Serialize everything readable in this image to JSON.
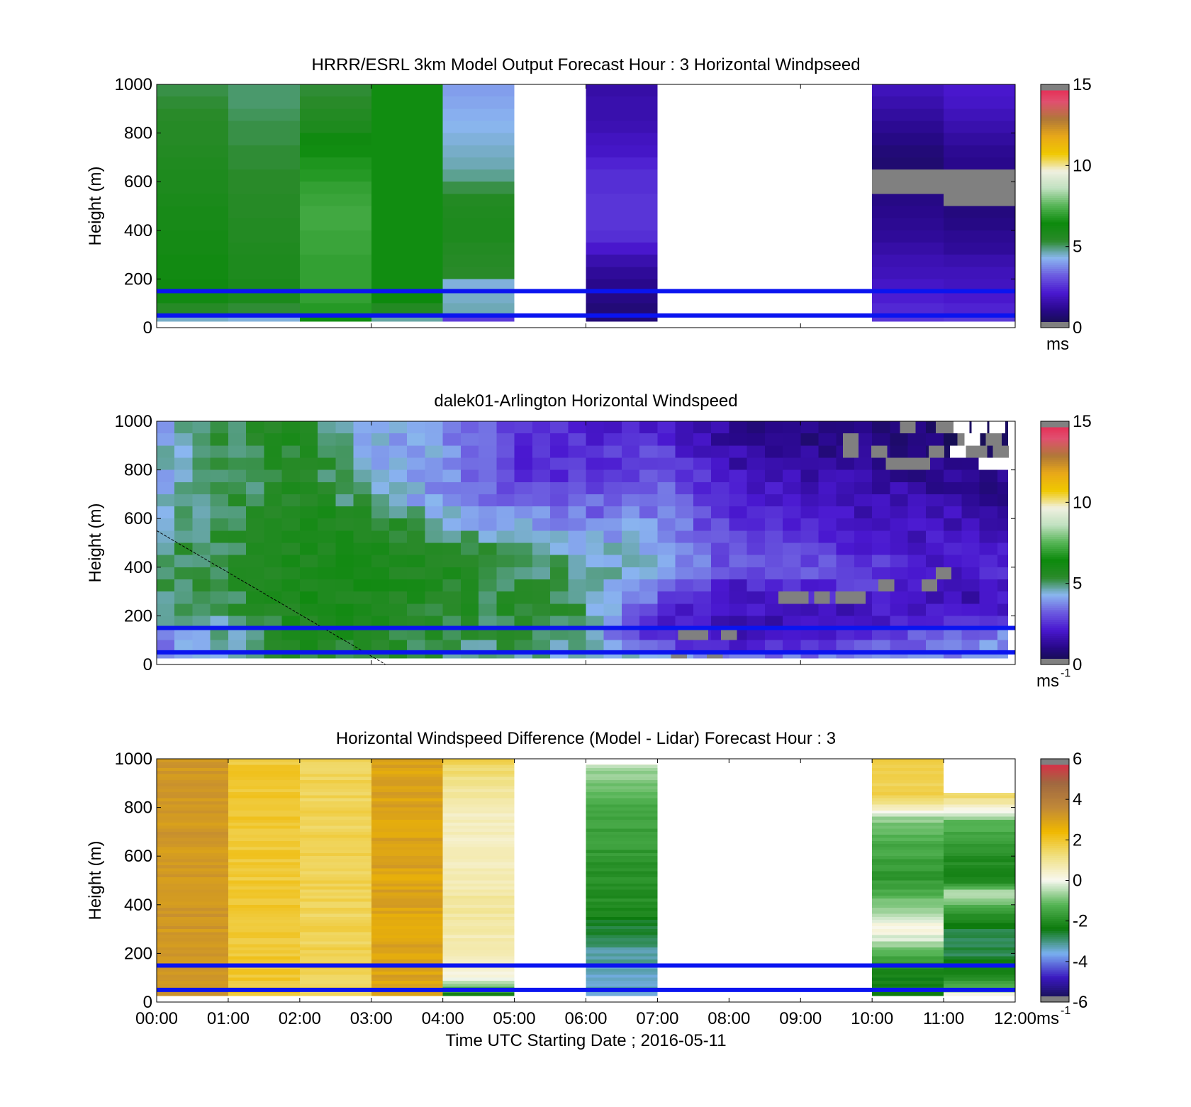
{
  "colormaps": {
    "speed": [
      "#101040",
      "#28088a",
      "#4a18d0",
      "#6c5ce0",
      "#8ab6f0",
      "#2a8a2a",
      "#0c8a0c",
      "#55b455",
      "#bfe0bf",
      "#f0f0e0",
      "#f0c800",
      "#e8a818",
      "#b07838",
      "#e05070",
      "#e8204a"
    ],
    "diff": [
      "#101040",
      "#3a18c0",
      "#7ab0f0",
      "#0c7a0c",
      "#55b455",
      "#f8f8f0",
      "#f0e080",
      "#f0b800",
      "#c08838",
      "#a06840",
      "#e8204a"
    ],
    "mask_color": "#808080"
  },
  "chart_data": [
    {
      "type": "heatmap",
      "title": "HRRR/ESRL 3km Model Output   Forecast Hour : 3 Horizontal Windpseed",
      "ylabel": "Height (m)",
      "xlabel": "",
      "show_x_tick_labels": false,
      "x_ticks": [
        "00:00",
        "01:00",
        "02:00",
        "03:00",
        "04:00",
        "05:00",
        "06:00",
        "07:00",
        "08:00",
        "09:00",
        "10:00",
        "11:00",
        "12:00"
      ],
      "xlim": [
        0,
        12
      ],
      "ylim": [
        0,
        1000
      ],
      "y_ticks": [
        0,
        200,
        400,
        600,
        800,
        1000
      ],
      "colormap": "speed",
      "clim": [
        0,
        15
      ],
      "cbar_ticks": [
        0,
        5,
        10,
        15
      ],
      "cbar_label": "ms",
      "cbar_label_sup": "",
      "reference_lines": [
        {
          "y": 150,
          "color": "#0a14f0"
        },
        {
          "y": 50,
          "color": "#0a14f0"
        }
      ],
      "height_edges": [
        25,
        50,
        100,
        150,
        200,
        250,
        300,
        350,
        400,
        450,
        500,
        550,
        600,
        650,
        700,
        750,
        800,
        850,
        900,
        950,
        1000
      ],
      "columns": [
        {
          "x0": 0,
          "x1": 1,
          "values": [
            4.5,
            5.5,
            6.2,
            6.3,
            6.2,
            6.2,
            6.1,
            6.1,
            6.0,
            6.0,
            5.9,
            5.8,
            5.8,
            5.7,
            5.6,
            5.5,
            5.5,
            5.4,
            5.3,
            5.2
          ]
        },
        {
          "x0": 1,
          "x1": 2,
          "values": [
            4.4,
            5.3,
            5.9,
            5.9,
            5.8,
            5.8,
            5.7,
            5.6,
            5.6,
            5.5,
            5.5,
            5.4,
            5.4,
            5.3,
            5.3,
            5.2,
            5.2,
            5.1,
            5.0,
            5.0
          ]
        },
        {
          "x0": 2,
          "x1": 3,
          "values": [
            6.5,
            6.8,
            7.0,
            7.0,
            7.0,
            7.0,
            7.1,
            7.1,
            7.2,
            7.2,
            7.1,
            7.0,
            6.8,
            6.7,
            6.5,
            6.3,
            5.8,
            5.6,
            5.4,
            5.3
          ]
        },
        {
          "x0": 3,
          "x1": 4,
          "values": [
            4.7,
            5.6,
            6.4,
            6.5,
            6.5,
            6.5,
            6.5,
            6.5,
            6.5,
            6.5,
            6.5,
            6.5,
            6.5,
            6.5,
            6.5,
            6.5,
            6.5,
            6.5,
            6.5,
            6.5
          ]
        },
        {
          "x0": 4,
          "x1": 5,
          "values": [
            2.7,
            4.6,
            4.5,
            4.4,
            5.4,
            5.5,
            5.6,
            5.8,
            5.8,
            5.7,
            5.6,
            5.2,
            4.8,
            4.6,
            4.5,
            4.4,
            4.3,
            4.2,
            4.1,
            4.0
          ]
        },
        {
          "x0": 6,
          "x1": 7,
          "values": [
            0.8,
            0.8,
            1.0,
            1.1,
            1.3,
            1.6,
            2.1,
            2.5,
            2.6,
            2.6,
            2.6,
            2.5,
            2.5,
            2.3,
            2.0,
            1.9,
            1.7,
            1.6,
            1.6,
            1.5
          ]
        },
        {
          "x0": 10,
          "x1": 11,
          "values": [
            2.6,
            2.4,
            2.2,
            2.0,
            1.8,
            1.7,
            1.5,
            1.3,
            1.2,
            1.1,
            1.0,
            "mask",
            "mask",
            0.7,
            0.8,
            1.0,
            1.2,
            1.4,
            1.6,
            1.8
          ]
        },
        {
          "x0": 11,
          "x1": 12,
          "values": [
            2.7,
            2.3,
            2.1,
            1.9,
            1.8,
            1.6,
            1.3,
            1.2,
            1.0,
            0.9,
            "mask",
            "mask",
            "mask",
            1.1,
            1.2,
            1.4,
            1.6,
            1.8,
            2.0,
            2.1
          ]
        }
      ]
    },
    {
      "type": "heatmap",
      "title": "dalek01-Arlington  Horizontal Windspeed",
      "ylabel": "Height (m)",
      "xlabel": "",
      "show_x_tick_labels": false,
      "x_ticks": [
        "00:00",
        "01:00",
        "02:00",
        "03:00",
        "04:00",
        "05:00",
        "06:00",
        "07:00",
        "08:00",
        "09:00",
        "10:00",
        "11:00",
        "12:00"
      ],
      "xlim": [
        0,
        12
      ],
      "ylim": [
        0,
        1000
      ],
      "y_ticks": [
        0,
        200,
        400,
        600,
        800,
        1000
      ],
      "colormap": "speed",
      "clim": [
        0,
        15
      ],
      "cbar_ticks": [
        0,
        5,
        10,
        15
      ],
      "cbar_label": "ms",
      "cbar_label_sup": "-1",
      "reference_lines": [
        {
          "y": 150,
          "color": "#0a14f0"
        },
        {
          "y": 50,
          "color": "#0a14f0"
        }
      ],
      "diagonal_line": {
        "x0": 0,
        "y0": 550,
        "x1": 3.2,
        "y1": 0
      },
      "time_step_hours": 0.25,
      "x_extent": [
        0,
        11.9
      ],
      "height_edges": [
        25,
        50,
        100,
        150,
        200,
        250,
        300,
        350,
        400,
        450,
        500,
        550,
        600,
        650,
        700,
        750,
        800,
        850,
        900,
        950,
        1000
      ],
      "anchors": {
        "times": [
          0,
          1,
          2,
          3,
          4,
          5,
          6,
          7,
          8,
          9,
          10,
          11,
          11.9
        ],
        "heights": [
          25,
          100,
          200,
          300,
          400,
          500,
          600,
          700,
          800,
          900,
          1000
        ],
        "values": [
          [
            3.8,
            4.4,
            5.5,
            5.3,
            5.0,
            4.8,
            4.6,
            4.4,
            4.0,
            3.8,
            3.8,
            3.6,
            3.5
          ],
          [
            3.6,
            4.6,
            5.7,
            5.6,
            5.2,
            5.0,
            4.4,
            2.3,
            1.4,
            1.8,
            2.8,
            3.6,
            4.2
          ],
          [
            4.5,
            5.0,
            5.8,
            5.9,
            5.4,
            5.3,
            5.0,
            2.2,
            2.0,
            1.6,
            1.9,
            2.0,
            2.2
          ],
          [
            5.0,
            5.2,
            5.9,
            5.9,
            5.5,
            5.3,
            5.0,
            3.5,
            1.8,
            2.2,
            2.5,
            1.6,
            1.8
          ],
          [
            5.0,
            5.3,
            5.9,
            5.9,
            5.6,
            5.2,
            4.8,
            4.4,
            3.0,
            3.2,
            3.0,
            1.8,
            2.5
          ],
          [
            5.0,
            5.3,
            5.9,
            5.8,
            5.3,
            4.7,
            4.4,
            4.2,
            2.8,
            2.6,
            2.0,
            2.0,
            2.0
          ],
          [
            4.6,
            5.3,
            5.8,
            5.6,
            4.4,
            3.9,
            3.5,
            3.8,
            2.6,
            2.2,
            1.8,
            1.8,
            1.6
          ],
          [
            4.4,
            5.0,
            5.7,
            4.5,
            3.8,
            3.4,
            3.1,
            3.4,
            2.5,
            1.9,
            1.7,
            1.5,
            1.2
          ],
          [
            4.2,
            5.0,
            5.6,
            4.4,
            3.8,
            2.5,
            2.4,
            3.2,
            1.8,
            1.5,
            1.4,
            1.0,
            0.9
          ],
          [
            4.2,
            5.1,
            5.6,
            4.3,
            4.0,
            2.6,
            2.4,
            2.7,
            1.5,
            1.1,
            0.9,
            0.6,
            0.5
          ],
          [
            4.2,
            5.1,
            5.6,
            4.1,
            3.9,
            2.6,
            2.1,
            2.0,
            1.3,
            0.9,
            0.7,
            0.6,
            0.4
          ]
        ]
      },
      "masked_cells": [
        [
          9.7,
          875
        ],
        [
          9.7,
          925
        ],
        [
          10.1,
          875
        ],
        [
          10.3,
          825
        ],
        [
          10.5,
          825
        ],
        [
          10.7,
          825
        ],
        [
          10.9,
          875
        ],
        [
          11.1,
          975
        ],
        [
          11.3,
          925
        ],
        [
          10.5,
          975
        ],
        [
          11.0,
          975
        ],
        [
          11.3,
          875
        ],
        [
          11.5,
          875
        ],
        [
          11.7,
          925
        ],
        [
          11.8,
          875
        ],
        [
          8.8,
          275
        ],
        [
          9.0,
          275
        ],
        [
          9.3,
          275
        ],
        [
          9.6,
          275
        ],
        [
          9.8,
          275
        ],
        [
          10.2,
          325
        ],
        [
          10.8,
          325
        ],
        [
          11.0,
          375
        ],
        [
          7.3,
          25
        ],
        [
          7.4,
          100
        ],
        [
          7.6,
          100
        ],
        [
          7.8,
          25
        ],
        [
          8.0,
          100
        ]
      ],
      "nodata_cells": [
        [
          11.25,
          975
        ],
        [
          11.5,
          975
        ],
        [
          11.75,
          975
        ],
        [
          11.4,
          925
        ],
        [
          11.6,
          825
        ],
        [
          11.2,
          875
        ],
        [
          11.8,
          825
        ]
      ]
    },
    {
      "type": "heatmap",
      "title": "Horizontal Windspeed Difference (Model - Lidar) Forecast Hour : 3",
      "ylabel": "Height (m)",
      "xlabel": "Time UTC  Starting Date ; 2016-05-11",
      "show_x_tick_labels": true,
      "x_ticks": [
        "00:00",
        "01:00",
        "02:00",
        "03:00",
        "04:00",
        "05:00",
        "06:00",
        "07:00",
        "08:00",
        "09:00",
        "10:00",
        "11:00",
        "12:00"
      ],
      "xlim": [
        0,
        12
      ],
      "ylim": [
        0,
        1000
      ],
      "y_ticks": [
        0,
        200,
        400,
        600,
        800,
        1000
      ],
      "colormap": "diff",
      "clim": [
        -6,
        6
      ],
      "cbar_ticks": [
        -6,
        -4,
        -2,
        0,
        2,
        4,
        6
      ],
      "cbar_label": "ms",
      "cbar_label_sup": "-1",
      "reference_lines": [
        {
          "y": 150,
          "color": "#0a14f0"
        },
        {
          "y": 50,
          "color": "#0a14f0"
        }
      ],
      "columns": [
        {
          "x0": 0,
          "x1": 1,
          "base": 3.2,
          "jitter": 0.25,
          "y0": 25,
          "y1": 1000
        },
        {
          "x0": 1,
          "x1": 2,
          "base": 1.9,
          "jitter": 0.25,
          "y0": 25,
          "y1": 1000
        },
        {
          "x0": 2,
          "x1": 3,
          "base": 1.6,
          "jitter": 0.25,
          "y0": 25,
          "y1": 1000
        },
        {
          "x0": 3,
          "x1": 4,
          "base": 2.9,
          "jitter": 0.3,
          "y0": 25,
          "y1": 1000
        },
        {
          "x0": 4,
          "x1": 5,
          "profile": [
            [
              25,
              -2.5
            ],
            [
              60,
              -1.2
            ],
            [
              100,
              0.2
            ],
            [
              200,
              0.6
            ],
            [
              400,
              0.9
            ],
            [
              600,
              0.5
            ],
            [
              800,
              0.6
            ],
            [
              950,
              1.3
            ],
            [
              1000,
              1.7
            ]
          ],
          "jitter": 0.2
        },
        {
          "x0": 6,
          "x1": 7,
          "profile": [
            [
              25,
              -3.4
            ],
            [
              200,
              -3.2
            ],
            [
              300,
              -2.6
            ],
            [
              400,
              -2.0
            ],
            [
              600,
              -1.8
            ],
            [
              800,
              -1.4
            ],
            [
              950,
              -0.6
            ],
            [
              980,
              -0.1
            ]
          ],
          "jitter": 0.2
        },
        {
          "x0": 10,
          "x1": 11,
          "profile": [
            [
              25,
              -2.6
            ],
            [
              150,
              -2.0
            ],
            [
              250,
              -0.4
            ],
            [
              300,
              0.3
            ],
            [
              350,
              -0.4
            ],
            [
              500,
              -1.8
            ],
            [
              650,
              -1.4
            ],
            [
              750,
              -0.8
            ],
            [
              800,
              0.6
            ],
            [
              850,
              1.6
            ],
            [
              1000,
              1.7
            ]
          ],
          "jitter": 0.2
        },
        {
          "x0": 11,
          "x1": 12,
          "profile": [
            [
              25,
              0.6
            ],
            [
              60,
              -1.5
            ],
            [
              200,
              -2.8
            ],
            [
              300,
              -2.6
            ],
            [
              400,
              -1.2
            ],
            [
              450,
              -0.4
            ],
            [
              500,
              -2.2
            ],
            [
              650,
              -1.8
            ],
            [
              750,
              -1.0
            ],
            [
              800,
              0.4
            ],
            [
              860,
              1.6
            ]
          ],
          "jitter": 0.2
        }
      ]
    }
  ]
}
